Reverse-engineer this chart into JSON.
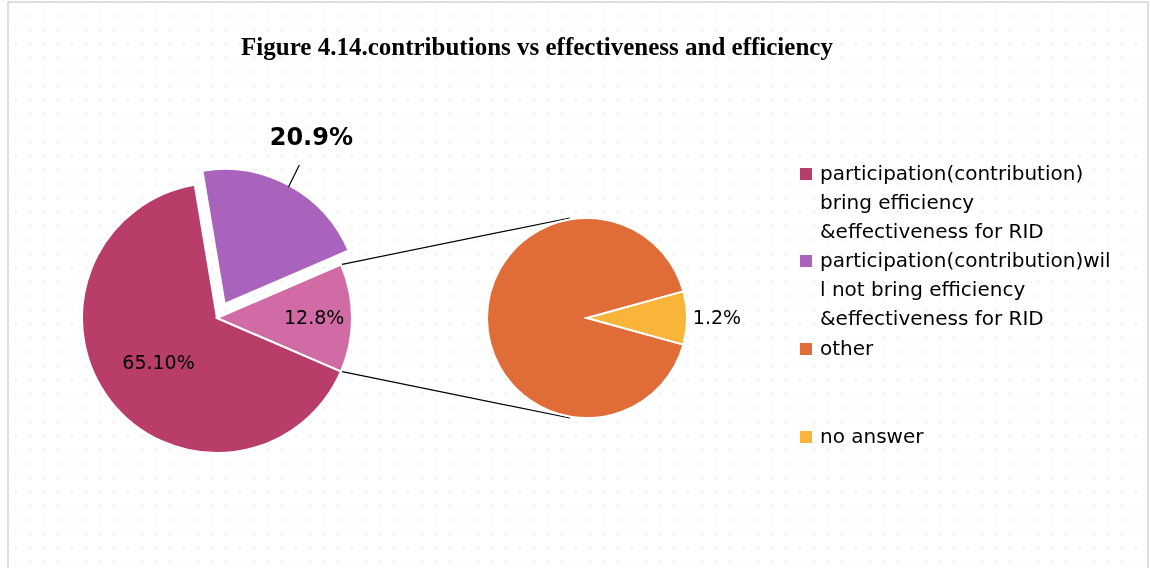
{
  "chart_data": [
    {
      "type": "pie",
      "title": "Figure 4.14.contributions vs effectiveness and efficiency",
      "categories": [
        "participation(contribution) bring efficiency &effectiveness for RID",
        "participation(contribution)will not bring efficiency &effectiveness for RID",
        null
      ],
      "values": [
        65.1,
        20.9,
        12.8
      ],
      "colors": [
        "#b83d68",
        "#a963bd",
        "#d16ba5"
      ],
      "value_labels": [
        "65.10%",
        "20.9%",
        "12.8%"
      ],
      "legend": "right"
    },
    {
      "type": "pie",
      "categories": [
        "other",
        "no answer"
      ],
      "values": [
        12.8,
        1.2
      ],
      "colors": [
        "#e06c38",
        "#f9b53a"
      ],
      "value_labels": [
        null,
        "1.2%"
      ],
      "legend": "right"
    }
  ]
}
